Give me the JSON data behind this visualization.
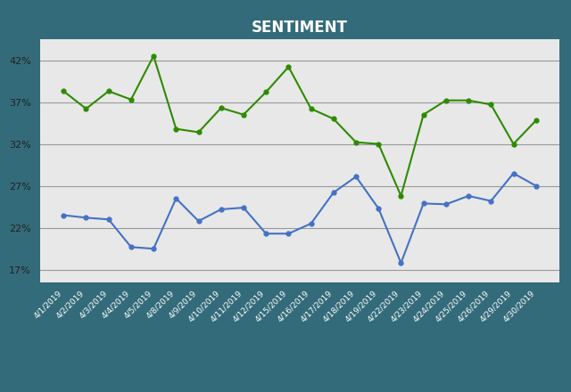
{
  "title": "SENTIMENT",
  "background_color": "#336b7a",
  "plot_bg_color": "#e8e8e8",
  "dates": [
    "4/1/2019",
    "4/2/2019",
    "4/3/2019",
    "4/4/2019",
    "4/5/2019",
    "4/8/2019",
    "4/9/2019",
    "4/10/2019",
    "4/11/2019",
    "4/12/2019",
    "4/15/2019",
    "4/16/2019",
    "4/17/2019",
    "4/18/2019",
    "4/19/2019",
    "4/22/2019",
    "4/23/2019",
    "4/24/2019",
    "4/25/2019",
    "4/26/2019",
    "4/29/2019",
    "4/30/2019"
  ],
  "decliners": [
    0.235,
    0.232,
    0.23,
    0.197,
    0.195,
    0.255,
    0.228,
    0.242,
    0.244,
    0.213,
    0.213,
    0.225,
    0.262,
    0.281,
    0.243,
    0.178,
    0.249,
    0.248,
    0.258,
    0.252,
    0.285,
    0.27
  ],
  "advancers": [
    0.383,
    0.362,
    0.383,
    0.373,
    0.425,
    0.338,
    0.334,
    0.363,
    0.355,
    0.382,
    0.412,
    0.362,
    0.35,
    0.322,
    0.32,
    0.258,
    0.355,
    0.372,
    0.372,
    0.367,
    0.32,
    0.348
  ],
  "decliners_color": "#4472c4",
  "advancers_color": "#2e8b00",
  "yticks": [
    0.17,
    0.22,
    0.27,
    0.32,
    0.37,
    0.42
  ],
  "ylim": [
    0.155,
    0.445
  ],
  "title_color": "white",
  "title_fontsize": 12,
  "legend_text_color": "white"
}
